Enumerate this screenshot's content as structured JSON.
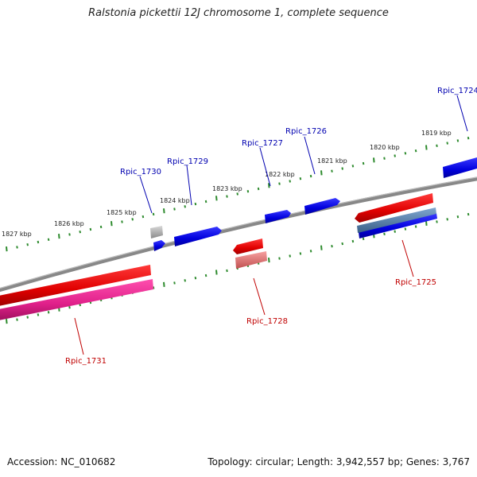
{
  "title": "Ralstonia pickettii 12J chromosome 1, complete sequence",
  "footer": {
    "accession_label": "Accession: NC_010682",
    "summary": "Topology: circular; Length: 3,942,557 bp; Genes: 3,767"
  },
  "ruler": {
    "outer": [
      "1819 kbp",
      "1820 kbp",
      "1821 kbp",
      "1822 kbp",
      "1823 kbp",
      "1824 kbp",
      "1825 kbp",
      "1826 kbp",
      "1827 kbp"
    ]
  },
  "genes": [
    {
      "id": "Rpic_1724",
      "strand": "forward",
      "color": "#1010cc"
    },
    {
      "id": "Rpic_1726",
      "strand": "forward",
      "color": "#1010cc"
    },
    {
      "id": "Rpic_1727",
      "strand": "forward",
      "color": "#1010cc"
    },
    {
      "id": "Rpic_1729",
      "strand": "forward",
      "color": "#1010cc"
    },
    {
      "id": "Rpic_1730",
      "strand": "forward",
      "color": "#1010cc"
    },
    {
      "id": "Rpic_1725",
      "strand": "reverse",
      "color": "#cc1010"
    },
    {
      "id": "Rpic_1728",
      "strand": "reverse",
      "color": "#cc1010"
    },
    {
      "id": "Rpic_1731",
      "strand": "reverse",
      "color": "#cc1010"
    }
  ],
  "colors": {
    "backbone": "#7a7a7a",
    "tick": "#2e8b2e",
    "forward_cds": "#0000e0",
    "reverse_cds": "#e00000",
    "forward_label": "#0000b0",
    "reverse_label": "#c00000",
    "pink_feature": "#e0208a",
    "grey_feature": "#b0b0b0",
    "slate_feature": "#4f7fb0",
    "light_red_feature": "#e87070"
  }
}
